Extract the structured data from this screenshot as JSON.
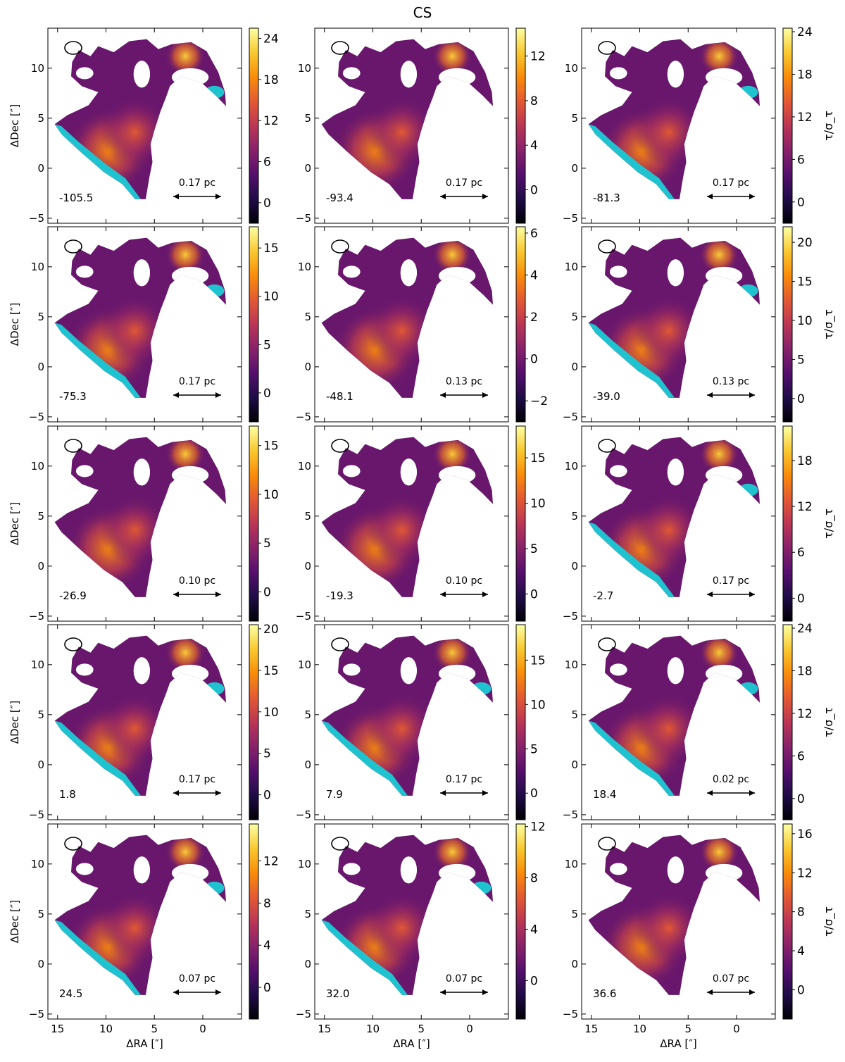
{
  "figure": {
    "title": "CS"
  },
  "axes": {
    "xlabel": "ΔRA [″]",
    "ylabel": "ΔDec [″]",
    "xlim": [
      16,
      -4
    ],
    "ylim": [
      -5.5,
      14
    ],
    "xticks": [
      15,
      10,
      5,
      0
    ],
    "yticks": [
      -5,
      0,
      5,
      10
    ],
    "colorbar_label": "τ/σ_τ"
  },
  "colors": {
    "masked": "#1fc3d0",
    "colormap": "inferno"
  },
  "chart_data": [
    {
      "type": "heatmap",
      "velocity_label": "-105.5",
      "scale_bar": "0.17 pc",
      "clim": [
        -3,
        25.5
      ],
      "cbar_ticks": [
        0,
        6,
        12,
        18,
        24
      ],
      "masked_region": true,
      "title": "",
      "xlabel": "",
      "ylabel": "ΔDec [″]"
    },
    {
      "type": "heatmap",
      "velocity_label": "-93.4",
      "scale_bar": "0.17 pc",
      "clim": [
        -3,
        14.5
      ],
      "cbar_ticks": [
        0,
        4,
        8,
        12
      ],
      "masked_region": false,
      "title": "",
      "xlabel": "",
      "ylabel": ""
    },
    {
      "type": "heatmap",
      "velocity_label": "-81.3",
      "scale_bar": "0.17 pc",
      "clim": [
        -3,
        24.5
      ],
      "cbar_ticks": [
        0,
        6,
        12,
        18,
        24
      ],
      "masked_region": true,
      "title": "",
      "xlabel": "",
      "ylabel": "",
      "colorbar_label": "τ/σ_τ"
    },
    {
      "type": "heatmap",
      "velocity_label": "-75.3",
      "scale_bar": "0.17 pc",
      "clim": [
        -3,
        17.2
      ],
      "cbar_ticks": [
        0,
        5,
        10,
        15
      ],
      "masked_region": true,
      "title": "",
      "xlabel": "",
      "ylabel": "ΔDec [″]"
    },
    {
      "type": "heatmap",
      "velocity_label": "-48.1",
      "scale_bar": "0.13 pc",
      "clim": [
        -3,
        6.3
      ],
      "cbar_ticks": [
        -2,
        0,
        2,
        4,
        6
      ],
      "masked_region": false,
      "title": "",
      "xlabel": "",
      "ylabel": ""
    },
    {
      "type": "heatmap",
      "velocity_label": "-39.0",
      "scale_bar": "0.13 pc",
      "clim": [
        -3,
        22
      ],
      "cbar_ticks": [
        0,
        5,
        10,
        15,
        20
      ],
      "masked_region": true,
      "title": "",
      "xlabel": "",
      "ylabel": "",
      "colorbar_label": "τ/σ_τ"
    },
    {
      "type": "heatmap",
      "velocity_label": "-26.9",
      "scale_bar": "0.10 pc",
      "clim": [
        -3,
        17
      ],
      "cbar_ticks": [
        0,
        5,
        10,
        15
      ],
      "masked_region": false,
      "title": "",
      "xlabel": "",
      "ylabel": "ΔDec [″]"
    },
    {
      "type": "heatmap",
      "velocity_label": "-19.3",
      "scale_bar": "0.10 pc",
      "clim": [
        -3,
        18.5
      ],
      "cbar_ticks": [
        0,
        5,
        10,
        15
      ],
      "masked_region": false,
      "title": "",
      "xlabel": "",
      "ylabel": ""
    },
    {
      "type": "heatmap",
      "velocity_label": "-2.7",
      "scale_bar": "0.17 pc",
      "clim": [
        -3,
        22.5
      ],
      "cbar_ticks": [
        0,
        6,
        12,
        18
      ],
      "masked_region": true,
      "title": "",
      "xlabel": "",
      "ylabel": "",
      "colorbar_label": "τ/σ_τ"
    },
    {
      "type": "heatmap",
      "velocity_label": "1.8",
      "scale_bar": "0.17 pc",
      "clim": [
        -3,
        20.5
      ],
      "cbar_ticks": [
        0,
        5,
        10,
        15,
        20
      ],
      "masked_region": true,
      "title": "",
      "xlabel": "",
      "ylabel": "ΔDec [″]"
    },
    {
      "type": "heatmap",
      "velocity_label": "7.9",
      "scale_bar": "0.17 pc",
      "clim": [
        -3,
        19
      ],
      "cbar_ticks": [
        0,
        5,
        10,
        15
      ],
      "masked_region": true,
      "title": "",
      "xlabel": "",
      "ylabel": ""
    },
    {
      "type": "heatmap",
      "velocity_label": "18.4",
      "scale_bar": "0.02 pc",
      "clim": [
        -3,
        24.5
      ],
      "cbar_ticks": [
        0,
        6,
        12,
        18,
        24
      ],
      "masked_region": true,
      "title": "",
      "xlabel": "",
      "ylabel": "",
      "colorbar_label": "τ/σ_τ"
    },
    {
      "type": "heatmap",
      "velocity_label": "24.5",
      "scale_bar": "0.07 pc",
      "clim": [
        -3,
        15.5
      ],
      "cbar_ticks": [
        0,
        4,
        8,
        12
      ],
      "masked_region": true,
      "title": "",
      "xlabel": "ΔRA [″]",
      "ylabel": "ΔDec [″]"
    },
    {
      "type": "heatmap",
      "velocity_label": "32.0",
      "scale_bar": "0.07 pc",
      "clim": [
        -3,
        12.2
      ],
      "cbar_ticks": [
        0,
        4,
        8,
        12
      ],
      "masked_region": true,
      "title": "",
      "xlabel": "ΔRA [″]",
      "ylabel": ""
    },
    {
      "type": "heatmap",
      "velocity_label": "36.6",
      "scale_bar": "0.07 pc",
      "clim": [
        -3,
        17
      ],
      "cbar_ticks": [
        0,
        4,
        8,
        12,
        16
      ],
      "masked_region": false,
      "title": "",
      "xlabel": "ΔRA [″]",
      "ylabel": "",
      "colorbar_label": "τ/σ_τ"
    }
  ]
}
